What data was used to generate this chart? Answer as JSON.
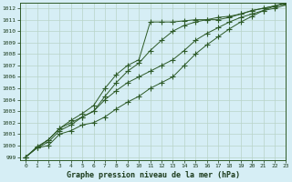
{
  "title": "Graphe pression niveau de la mer (hPa)",
  "bg_color": "#d6eef5",
  "grid_color": "#b8d4c8",
  "line_color": "#2d5a27",
  "xlim": [
    -0.5,
    23
  ],
  "ylim": [
    998.7,
    1012.5
  ],
  "yticks": [
    999,
    1000,
    1001,
    1002,
    1003,
    1004,
    1005,
    1006,
    1007,
    1008,
    1009,
    1010,
    1011,
    1012
  ],
  "xticks": [
    0,
    1,
    2,
    3,
    4,
    5,
    6,
    7,
    8,
    9,
    10,
    11,
    12,
    13,
    14,
    15,
    16,
    17,
    18,
    19,
    20,
    21,
    22,
    23
  ],
  "series": [
    [
      999.0,
      999.8,
      1000.0,
      1001.0,
      1001.3,
      1001.8,
      1002.0,
      1002.5,
      1003.2,
      1003.8,
      1004.3,
      1005.0,
      1005.5,
      1006.0,
      1007.0,
      1008.0,
      1008.8,
      1009.5,
      1010.2,
      1010.8,
      1011.3,
      1011.8,
      1012.2,
      1012.5
    ],
    [
      999.0,
      999.8,
      1000.3,
      1001.3,
      1001.8,
      1002.5,
      1003.0,
      1004.0,
      1004.8,
      1005.5,
      1006.0,
      1006.5,
      1007.0,
      1007.5,
      1008.3,
      1009.2,
      1009.8,
      1010.3,
      1010.8,
      1011.2,
      1011.5,
      1011.8,
      1012.0,
      1012.3
    ],
    [
      999.0,
      999.8,
      1000.5,
      1001.5,
      1002.2,
      1002.8,
      1003.5,
      1005.0,
      1006.2,
      1007.0,
      1007.5,
      1010.8,
      1010.8,
      1010.8,
      1010.9,
      1011.0,
      1011.0,
      1011.2,
      1011.3,
      1011.5,
      1011.8,
      1012.0,
      1012.2,
      1012.4
    ],
    [
      999.0,
      999.9,
      1000.5,
      1001.5,
      1002.0,
      1002.5,
      1003.0,
      1004.3,
      1005.5,
      1006.5,
      1007.2,
      1008.3,
      1009.2,
      1010.0,
      1010.5,
      1010.8,
      1011.0,
      1011.0,
      1011.2,
      1011.5,
      1011.8,
      1012.0,
      1012.2,
      1012.4
    ]
  ]
}
